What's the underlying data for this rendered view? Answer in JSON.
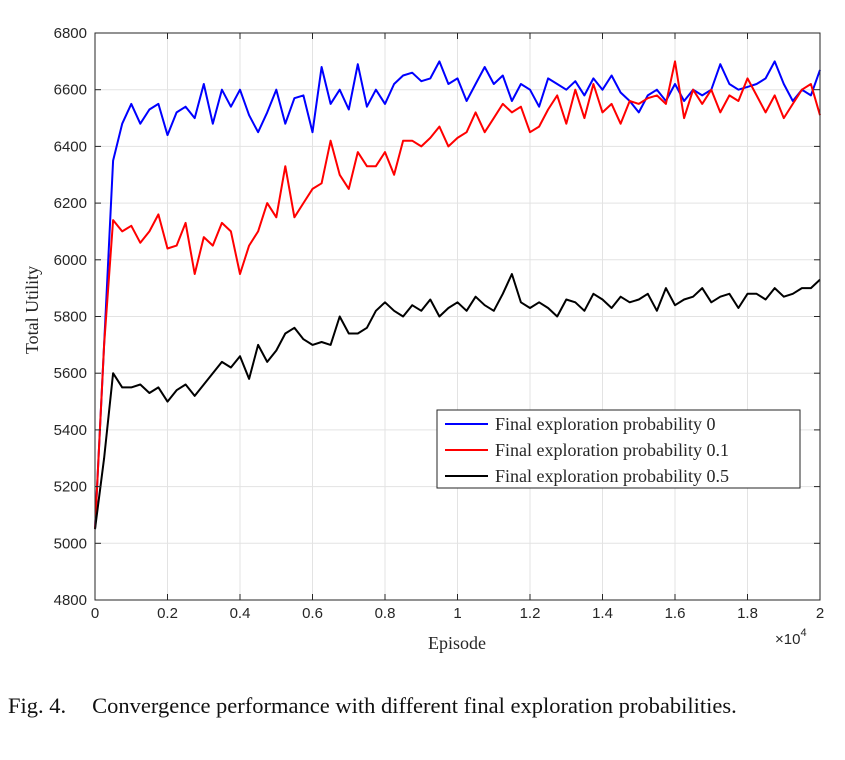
{
  "chart_data": {
    "type": "line",
    "xlabel": "Episode",
    "ylabel": "Total Utility",
    "x_multiplier_label": "×10",
    "x_multiplier_exp": "4",
    "xlim": [
      0,
      20000
    ],
    "ylim": [
      4800,
      6800
    ],
    "xticks": [
      0,
      2000,
      4000,
      6000,
      8000,
      10000,
      12000,
      14000,
      16000,
      18000,
      20000
    ],
    "xtick_labels": [
      "0",
      "0.2",
      "0.4",
      "0.6",
      "0.8",
      "1",
      "1.2",
      "1.4",
      "1.6",
      "1.8",
      "2"
    ],
    "yticks": [
      4800,
      5000,
      5200,
      5400,
      5600,
      5800,
      6000,
      6200,
      6400,
      6600,
      6800
    ],
    "ytick_labels": [
      "4800",
      "5000",
      "5200",
      "5400",
      "5600",
      "5800",
      "6000",
      "6200",
      "6400",
      "6600",
      "6800"
    ],
    "grid": true,
    "legend_position": "lower-right",
    "x_start": 0,
    "x_step": 250,
    "series": [
      {
        "name": "Final exploration probability 0",
        "color": "#0000ff",
        "values": [
          5050,
          5700,
          6350,
          6480,
          6550,
          6480,
          6530,
          6550,
          6440,
          6520,
          6540,
          6500,
          6620,
          6480,
          6600,
          6540,
          6600,
          6510,
          6450,
          6520,
          6600,
          6480,
          6570,
          6580,
          6450,
          6680,
          6550,
          6600,
          6530,
          6690,
          6540,
          6600,
          6550,
          6620,
          6650,
          6660,
          6630,
          6640,
          6700,
          6620,
          6640,
          6560,
          6620,
          6680,
          6620,
          6650,
          6560,
          6620,
          6600,
          6540,
          6640,
          6620,
          6600,
          6630,
          6580,
          6640,
          6600,
          6650,
          6590,
          6560,
          6520,
          6580,
          6600,
          6560,
          6620,
          6560,
          6600,
          6580,
          6600,
          6690,
          6620,
          6600,
          6610,
          6620,
          6640,
          6700,
          6620,
          6560,
          6600,
          6580,
          6670
        ]
      },
      {
        "name": "Final exploration probability 0.1",
        "color": "#ff0000",
        "values": [
          5050,
          5700,
          6140,
          6100,
          6120,
          6060,
          6100,
          6160,
          6040,
          6050,
          6130,
          5950,
          6080,
          6050,
          6130,
          6100,
          5950,
          6050,
          6100,
          6200,
          6150,
          6330,
          6150,
          6200,
          6250,
          6270,
          6420,
          6300,
          6250,
          6380,
          6330,
          6330,
          6380,
          6300,
          6420,
          6420,
          6400,
          6430,
          6470,
          6400,
          6430,
          6450,
          6520,
          6450,
          6500,
          6550,
          6520,
          6540,
          6450,
          6470,
          6530,
          6580,
          6480,
          6600,
          6500,
          6620,
          6520,
          6550,
          6480,
          6560,
          6550,
          6570,
          6580,
          6550,
          6700,
          6500,
          6600,
          6550,
          6600,
          6520,
          6580,
          6560,
          6640,
          6580,
          6520,
          6580,
          6500,
          6550,
          6600,
          6620,
          6510
        ]
      },
      {
        "name": "Final exploration probability 0.5",
        "color": "#000000",
        "values": [
          5050,
          5300,
          5600,
          5550,
          5550,
          5560,
          5530,
          5550,
          5500,
          5540,
          5560,
          5520,
          5560,
          5600,
          5640,
          5620,
          5660,
          5580,
          5700,
          5640,
          5680,
          5740,
          5760,
          5720,
          5700,
          5710,
          5700,
          5800,
          5740,
          5740,
          5760,
          5820,
          5850,
          5820,
          5800,
          5840,
          5820,
          5860,
          5800,
          5830,
          5850,
          5820,
          5870,
          5840,
          5820,
          5880,
          5950,
          5850,
          5830,
          5850,
          5830,
          5800,
          5860,
          5850,
          5820,
          5880,
          5860,
          5830,
          5870,
          5850,
          5860,
          5880,
          5820,
          5900,
          5840,
          5860,
          5870,
          5900,
          5850,
          5870,
          5880,
          5830,
          5880,
          5880,
          5860,
          5900,
          5870,
          5880,
          5900,
          5900,
          5930
        ]
      }
    ]
  },
  "caption": {
    "label": "Fig. 4.",
    "text": "Convergence performance with different final exploration probabilities."
  }
}
